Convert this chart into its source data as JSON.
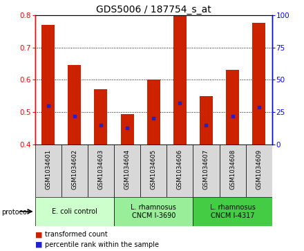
{
  "title": "GDS5006 / 187754_s_at",
  "samples": [
    "GSM1034601",
    "GSM1034602",
    "GSM1034603",
    "GSM1034604",
    "GSM1034605",
    "GSM1034606",
    "GSM1034607",
    "GSM1034608",
    "GSM1034609"
  ],
  "bar_values": [
    0.77,
    0.645,
    0.57,
    0.493,
    0.6,
    0.798,
    0.55,
    0.63,
    0.775
  ],
  "bar_bottom": 0.4,
  "blue_dot_values": [
    0.52,
    0.487,
    0.46,
    0.45,
    0.48,
    0.528,
    0.46,
    0.487,
    0.515
  ],
  "ylim": [
    0.4,
    0.8
  ],
  "yticks": [
    0.4,
    0.5,
    0.6,
    0.7,
    0.8
  ],
  "right_yticks": [
    0,
    25,
    50,
    75,
    100
  ],
  "bar_color": "#cc2200",
  "dot_color": "#2222cc",
  "groups": [
    {
      "label": "E. coli control",
      "start": 0,
      "end": 3,
      "color": "#ccffcc"
    },
    {
      "label": "L. rhamnosus\nCNCM I-3690",
      "start": 3,
      "end": 6,
      "color": "#99ee99"
    },
    {
      "label": "L. rhamnosus\nCNCM I-4317",
      "start": 6,
      "end": 9,
      "color": "#44cc44"
    }
  ],
  "protocol_label": "protocol",
  "legend_bar_label": "transformed count",
  "legend_dot_label": "percentile rank within the sample",
  "bar_width": 0.5,
  "title_fontsize": 10,
  "tick_fontsize": 7.5,
  "sample_fontsize": 6.2,
  "group_fontsize": 7.0,
  "legend_fontsize": 7.0
}
